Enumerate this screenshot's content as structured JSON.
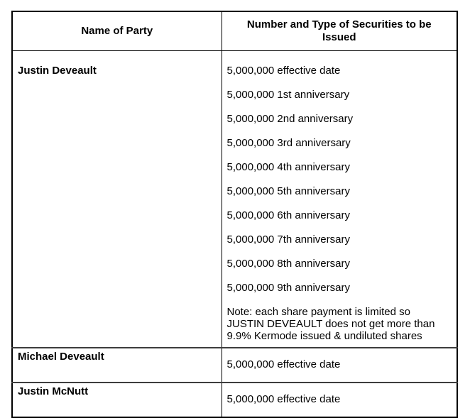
{
  "document": {
    "table": {
      "columns": [
        {
          "header": "Name of Party"
        },
        {
          "header": "Number and Type of Securities to be Issued"
        }
      ],
      "rows": [
        {
          "party": "Justin Deveault",
          "securities": [
            "5,000,000 effective date",
            "5,000,000 1st anniversary",
            "5,000,000 2nd anniversary",
            "5,000,000 3rd anniversary",
            "5,000,000 4th anniversary",
            "5,000,000 5th anniversary",
            "5,000,000 6th anniversary",
            "5,000,000 7th anniversary",
            "5,000,000 8th anniversary",
            "5,000,000 9th anniversary"
          ],
          "note_lines": [
            "Note: each share payment is limited so",
            "JUSTIN DEVEAULT does not get more than",
            "9.9% Kermode issued & undiluted shares"
          ]
        },
        {
          "party": "Michael Deveault",
          "securities": [
            "5,000,000 effective date"
          ]
        },
        {
          "party": "Justin McNutt",
          "securities": [
            "5,000,000 effective date"
          ]
        }
      ],
      "colors": {
        "background": "#ffffff",
        "text": "#000000",
        "border_outer": "#000000",
        "border_inner": "#3d3d3d"
      }
    }
  }
}
